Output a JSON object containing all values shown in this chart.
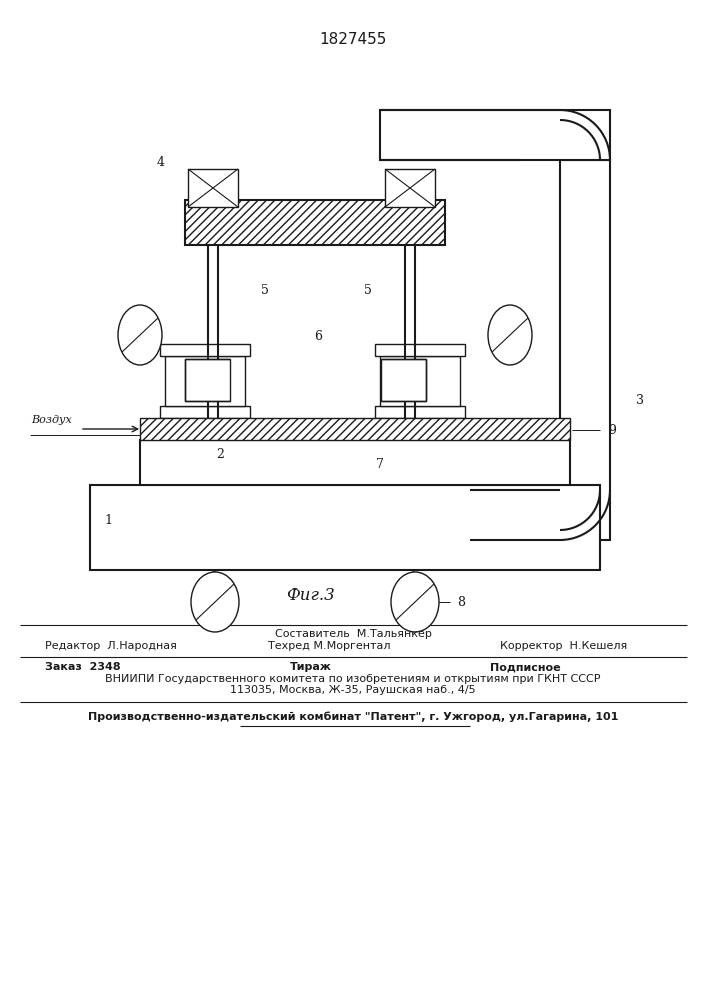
{
  "patent_number": "1827455",
  "fig_label": "Фиг.3",
  "bg": "#ffffff",
  "lc": "#1a1a1a",
  "footer": {
    "sestavitel": "Составитель  М.Тальянкер",
    "tekhred": "Техред М.Моргентал",
    "redaktor": "Редактор  Л.Народная",
    "korrektor": "Корректор  Н.Кешеля",
    "zakaz": "Заказ  2348",
    "tirazh": "Тираж",
    "podpisnoe": "Подписное",
    "vniiipi": "ВНИИПИ Государственного комитета по изобретениям и открытиям при ГКНТ СССР",
    "addr": "113035, Москва, Ж-35, Раушская наб., 4/5",
    "patent_pub": "Производственно-издательский комбинат \"Патент\", г. Ужгород, ул.Гагарина, 101"
  },
  "vozdukh": "Воздух"
}
